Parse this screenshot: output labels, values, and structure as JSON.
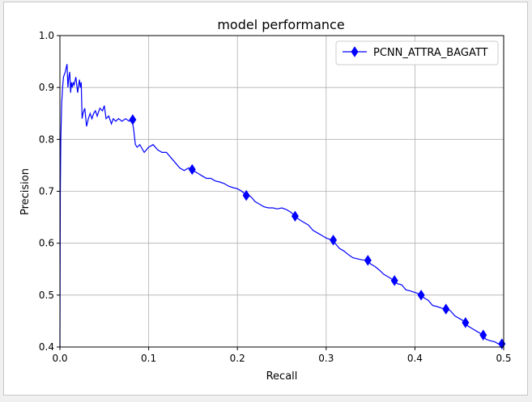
{
  "chart_data": {
    "type": "line",
    "title": "model performance",
    "xlabel": "Recall",
    "ylabel": "Precision",
    "xlim": [
      0.0,
      0.5
    ],
    "ylim": [
      0.4,
      1.0
    ],
    "xticks": [
      "0.0",
      "0.1",
      "0.2",
      "0.3",
      "0.4",
      "0.5"
    ],
    "yticks": [
      "0.4",
      "0.5",
      "0.6",
      "0.7",
      "0.8",
      "0.9",
      "1.0"
    ],
    "grid": true,
    "legend_position": "top-right",
    "series": [
      {
        "name": "PCNN_ATTRA_BAGATT",
        "color": "#0000ff",
        "marker": "diamond",
        "x": [
          0.0,
          0.0005,
          0.001,
          0.002,
          0.003,
          0.004,
          0.006,
          0.008,
          0.009,
          0.01,
          0.011,
          0.012,
          0.013,
          0.014,
          0.015,
          0.016,
          0.018,
          0.02,
          0.022,
          0.023,
          0.024,
          0.025,
          0.026,
          0.028,
          0.03,
          0.032,
          0.034,
          0.036,
          0.038,
          0.04,
          0.042,
          0.045,
          0.048,
          0.05,
          0.052,
          0.055,
          0.058,
          0.06,
          0.063,
          0.066,
          0.07,
          0.074,
          0.078,
          0.081,
          0.083,
          0.085,
          0.087,
          0.09,
          0.095,
          0.1,
          0.105,
          0.11,
          0.115,
          0.12,
          0.125,
          0.13,
          0.135,
          0.14,
          0.145,
          0.148,
          0.15,
          0.155,
          0.16,
          0.165,
          0.17,
          0.175,
          0.18,
          0.185,
          0.19,
          0.195,
          0.2,
          0.205,
          0.21,
          0.215,
          0.22,
          0.225,
          0.23,
          0.235,
          0.24,
          0.245,
          0.25,
          0.255,
          0.26,
          0.265,
          0.27,
          0.275,
          0.28,
          0.285,
          0.29,
          0.295,
          0.3,
          0.305,
          0.308,
          0.31,
          0.315,
          0.32,
          0.325,
          0.33,
          0.335,
          0.34,
          0.345,
          0.347,
          0.35,
          0.355,
          0.36,
          0.365,
          0.37,
          0.375,
          0.378,
          0.38,
          0.385,
          0.39,
          0.395,
          0.4,
          0.405,
          0.407,
          0.41,
          0.415,
          0.42,
          0.425,
          0.43,
          0.435,
          0.44,
          0.445,
          0.45,
          0.455,
          0.457,
          0.46,
          0.465,
          0.47,
          0.475,
          0.477,
          0.48,
          0.485,
          0.49,
          0.495,
          0.498,
          0.5
        ],
        "y": [
          0.4,
          0.7,
          0.8,
          0.87,
          0.9,
          0.92,
          0.93,
          0.945,
          0.9,
          0.92,
          0.93,
          0.89,
          0.91,
          0.9,
          0.91,
          0.905,
          0.92,
          0.89,
          0.915,
          0.9,
          0.91,
          0.84,
          0.85,
          0.86,
          0.825,
          0.84,
          0.85,
          0.84,
          0.85,
          0.855,
          0.845,
          0.86,
          0.855,
          0.865,
          0.84,
          0.845,
          0.83,
          0.84,
          0.835,
          0.84,
          0.835,
          0.84,
          0.835,
          0.84,
          0.82,
          0.79,
          0.785,
          0.79,
          0.775,
          0.785,
          0.79,
          0.78,
          0.775,
          0.775,
          0.765,
          0.755,
          0.745,
          0.74,
          0.745,
          0.742,
          0.74,
          0.735,
          0.73,
          0.725,
          0.725,
          0.72,
          0.718,
          0.715,
          0.71,
          0.707,
          0.705,
          0.7,
          0.692,
          0.69,
          0.68,
          0.675,
          0.67,
          0.668,
          0.668,
          0.666,
          0.668,
          0.665,
          0.66,
          0.652,
          0.645,
          0.64,
          0.635,
          0.625,
          0.62,
          0.615,
          0.61,
          0.607,
          0.605,
          0.6,
          0.59,
          0.585,
          0.578,
          0.572,
          0.57,
          0.568,
          0.567,
          0.566,
          0.56,
          0.555,
          0.548,
          0.54,
          0.535,
          0.53,
          0.527,
          0.522,
          0.52,
          0.51,
          0.508,
          0.505,
          0.502,
          0.5,
          0.495,
          0.49,
          0.48,
          0.478,
          0.475,
          0.473,
          0.47,
          0.46,
          0.455,
          0.45,
          0.447,
          0.44,
          0.435,
          0.43,
          0.425,
          0.422,
          0.415,
          0.412,
          0.41,
          0.405,
          0.406,
          0.4
        ],
        "markers": [
          [
            0.082,
            0.838
          ],
          [
            0.149,
            0.742
          ],
          [
            0.21,
            0.692
          ],
          [
            0.265,
            0.652
          ],
          [
            0.308,
            0.606
          ],
          [
            0.347,
            0.567
          ],
          [
            0.377,
            0.528
          ],
          [
            0.407,
            0.5
          ],
          [
            0.435,
            0.473
          ],
          [
            0.457,
            0.447
          ],
          [
            0.477,
            0.423
          ],
          [
            0.498,
            0.406
          ]
        ]
      }
    ]
  }
}
